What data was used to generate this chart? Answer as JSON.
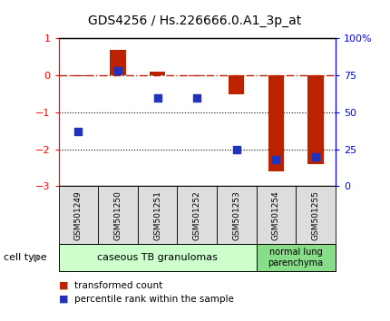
{
  "title": "GDS4256 / Hs.226666.0.A1_3p_at",
  "samples": [
    "GSM501249",
    "GSM501250",
    "GSM501251",
    "GSM501252",
    "GSM501253",
    "GSM501254",
    "GSM501255"
  ],
  "red_values": [
    -0.02,
    0.7,
    0.1,
    -0.02,
    -0.5,
    -2.6,
    -2.4
  ],
  "blue_values": [
    0.37,
    0.78,
    0.6,
    0.6,
    0.25,
    0.18,
    0.2
  ],
  "ylim_left": [
    -3.0,
    1.0
  ],
  "ylim_right": [
    0,
    100
  ],
  "yticks_left": [
    -3,
    -2,
    -1,
    0,
    1
  ],
  "yticks_right": [
    0,
    25,
    50,
    75,
    100
  ],
  "ytick_labels_right": [
    "0",
    "25",
    "50",
    "75",
    "100%"
  ],
  "bar_color": "#bb2200",
  "square_color": "#2233bb",
  "dotted_lines": [
    -1,
    -2
  ],
  "cell_type_groups": [
    {
      "label": "caseous TB granulomas",
      "start": 0,
      "end": 4,
      "color": "#ccffcc"
    },
    {
      "label": "normal lung\nparenchyma",
      "start": 5,
      "end": 6,
      "color": "#88dd88"
    }
  ],
  "legend_red": "transformed count",
  "legend_blue": "percentile rank within the sample",
  "cell_type_label": "cell type",
  "bg_color": "#ffffff",
  "bar_width": 0.4,
  "square_size": 35
}
